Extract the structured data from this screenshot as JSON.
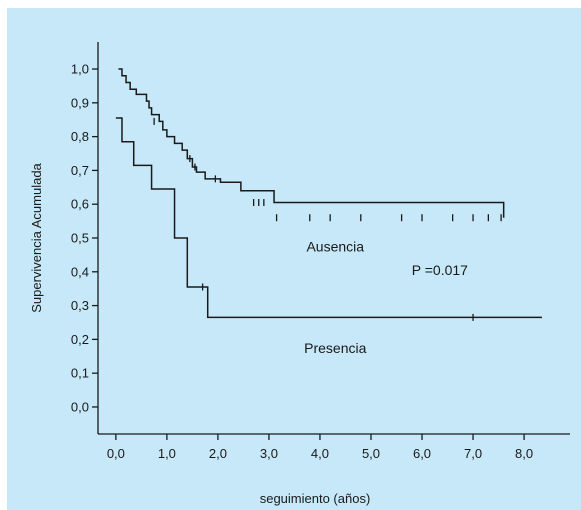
{
  "chart_data": {
    "type": "line",
    "title": "",
    "xlabel": "seguimiento (años)",
    "ylabel": "Supervivencia Acumulada",
    "xlim": [
      -0.35,
      8.9
    ],
    "ylim": [
      -0.08,
      1.08
    ],
    "x_ticks": [
      {
        "value": 0.0,
        "label": "0,0"
      },
      {
        "value": 1.0,
        "label": "1,0"
      },
      {
        "value": 2.0,
        "label": "2,0"
      },
      {
        "value": 3.0,
        "label": "3,0"
      },
      {
        "value": 4.0,
        "label": "4,0"
      },
      {
        "value": 5.0,
        "label": "5,0"
      },
      {
        "value": 6.0,
        "label": "6,0"
      },
      {
        "value": 7.0,
        "label": "7,0"
      },
      {
        "value": 8.0,
        "label": "8,0"
      }
    ],
    "y_ticks": [
      {
        "value": 0.0,
        "label": "0,0"
      },
      {
        "value": 0.1,
        "label": "0,1"
      },
      {
        "value": 0.2,
        "label": "0,2"
      },
      {
        "value": 0.3,
        "label": "0,3"
      },
      {
        "value": 0.4,
        "label": "0,4"
      },
      {
        "value": 0.5,
        "label": "0,5"
      },
      {
        "value": 0.6,
        "label": "0,6"
      },
      {
        "value": 0.7,
        "label": "0,7"
      },
      {
        "value": 0.8,
        "label": "0,8"
      },
      {
        "value": 0.9,
        "label": "0,9"
      },
      {
        "value": 1.0,
        "label": "1,0"
      }
    ],
    "grid": false,
    "series": [
      {
        "name": "Ausencia",
        "step": true,
        "x": [
          0.05,
          0.12,
          0.2,
          0.28,
          0.4,
          0.6,
          0.65,
          0.7,
          0.85,
          0.92,
          1.0,
          1.15,
          1.3,
          1.4,
          1.5,
          1.58,
          1.75,
          2.05,
          2.45,
          3.1,
          7.6
        ],
        "y": [
          1.0,
          0.98,
          0.96,
          0.94,
          0.925,
          0.905,
          0.885,
          0.865,
          0.845,
          0.82,
          0.8,
          0.78,
          0.76,
          0.735,
          0.71,
          0.695,
          0.675,
          0.665,
          0.64,
          0.605,
          0.56
        ],
        "censored": [
          {
            "x": 0.75,
            "y": 0.845
          },
          {
            "x": 1.45,
            "y": 0.735
          },
          {
            "x": 1.55,
            "y": 0.71
          },
          {
            "x": 1.95,
            "y": 0.675
          },
          {
            "x": 2.7,
            "y": 0.605
          },
          {
            "x": 2.8,
            "y": 0.605
          },
          {
            "x": 2.9,
            "y": 0.605
          },
          {
            "x": 3.15,
            "y": 0.56
          },
          {
            "x": 3.8,
            "y": 0.56
          },
          {
            "x": 4.2,
            "y": 0.56
          },
          {
            "x": 4.8,
            "y": 0.56
          },
          {
            "x": 5.6,
            "y": 0.56
          },
          {
            "x": 6.0,
            "y": 0.56
          },
          {
            "x": 6.6,
            "y": 0.56
          },
          {
            "x": 7.0,
            "y": 0.56
          },
          {
            "x": 7.3,
            "y": 0.56
          },
          {
            "x": 7.55,
            "y": 0.56
          }
        ]
      },
      {
        "name": "Presencia",
        "step": true,
        "x": [
          0.0,
          0.12,
          0.35,
          0.7,
          1.15,
          1.4,
          1.8,
          8.35
        ],
        "y": [
          0.855,
          0.785,
          0.715,
          0.645,
          0.5,
          0.355,
          0.265,
          0.265
        ],
        "censored": [
          {
            "x": 1.7,
            "y": 0.355
          },
          {
            "x": 7.0,
            "y": 0.265
          }
        ]
      }
    ],
    "annotations": [
      {
        "text": "Ausencia",
        "x": 4.3,
        "y": 0.475
      },
      {
        "text": "P =0.017",
        "x": 6.35,
        "y": 0.405
      },
      {
        "text": "Presencia",
        "x": 4.3,
        "y": 0.175
      }
    ]
  }
}
